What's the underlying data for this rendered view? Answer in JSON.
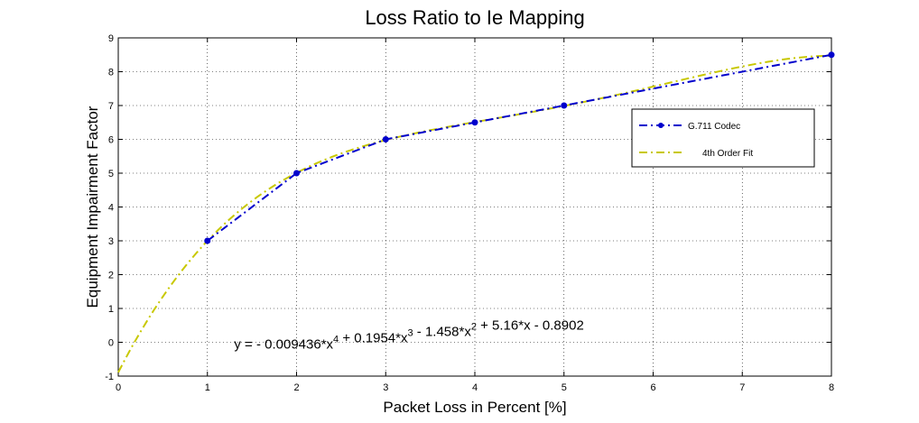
{
  "chart_data": {
    "type": "line",
    "title": "Loss Ratio to Ie Mapping",
    "xlabel": "Packet Loss in Percent [%]",
    "ylabel": "Equipment Impairment Factor",
    "xlim": [
      0,
      8
    ],
    "ylim": [
      -1,
      9
    ],
    "xticks": [
      0,
      1,
      2,
      3,
      4,
      5,
      6,
      7,
      8
    ],
    "yticks": [
      -1,
      0,
      1,
      2,
      3,
      4,
      5,
      6,
      7,
      8,
      9
    ],
    "grid": true,
    "legend_position": "right",
    "series": [
      {
        "name": "G.711 Codec",
        "color": "#0000cc",
        "style": "dash-dot with markers",
        "x": [
          1,
          2,
          3,
          4,
          5,
          8
        ],
        "y": [
          3,
          5,
          6,
          6.5,
          7,
          8.5
        ]
      },
      {
        "name": "4th Order Fit",
        "color": "#c8c800",
        "style": "dash-dot",
        "coefficients": [
          -0.009436,
          0.1954,
          -1.458,
          5.16,
          -0.8902
        ],
        "x_range": [
          0,
          8
        ]
      }
    ],
    "annotation": {
      "parts": [
        {
          "t": "y = - 0.009436*x",
          "sup": "4"
        },
        {
          "t": " + 0.1954*x",
          "sup": "3"
        },
        {
          "t": " - 1.458*x",
          "sup": "2"
        },
        {
          "t": " + 5.16*x - 0.8902",
          "sup": ""
        }
      ],
      "x": 1.3,
      "y": 0
    }
  }
}
